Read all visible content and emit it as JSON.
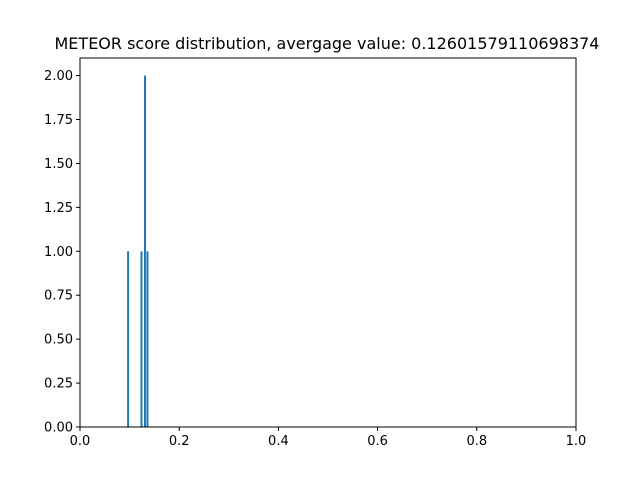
{
  "chart_data": {
    "type": "bar",
    "title": "METEOR score distribution, avergage value: 0.12601579110698374",
    "xlabel": "",
    "ylabel": "",
    "xlim": [
      0.0,
      1.0
    ],
    "ylim": [
      0.0,
      2.1
    ],
    "bin_width": 0.005,
    "bins": [
      {
        "x": 0.095,
        "count": 1
      },
      {
        "x": 0.122,
        "count": 1
      },
      {
        "x": 0.129,
        "count": 2
      },
      {
        "x": 0.134,
        "count": 1
      }
    ],
    "x_ticks": [
      0.0,
      0.2,
      0.4,
      0.6,
      0.8,
      1.0
    ],
    "x_tick_labels": [
      "0.0",
      "0.2",
      "0.4",
      "0.6",
      "0.8",
      "1.0"
    ],
    "y_ticks": [
      0.0,
      0.25,
      0.5,
      0.75,
      1.0,
      1.25,
      1.5,
      1.75,
      2.0
    ],
    "y_tick_labels": [
      "0.00",
      "0.25",
      "0.50",
      "0.75",
      "1.00",
      "1.25",
      "1.50",
      "1.75",
      "2.00"
    ],
    "bar_color": "#1f77b4",
    "grid": false,
    "legend": "none"
  }
}
